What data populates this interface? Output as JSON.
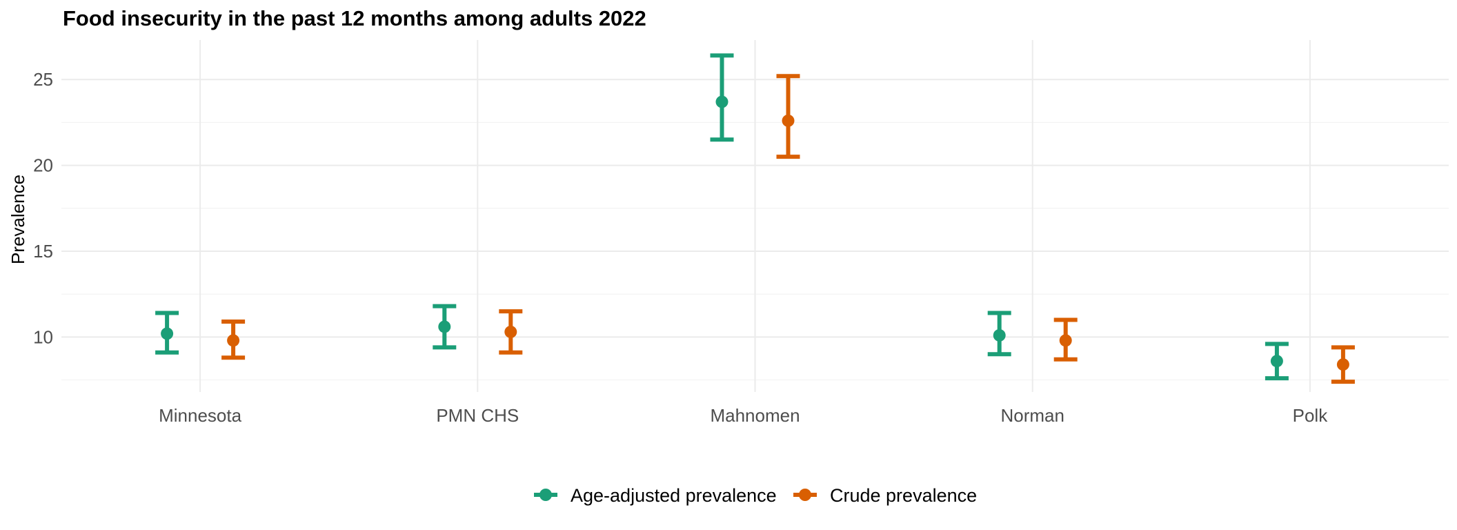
{
  "chart_data": {
    "type": "errorbar",
    "title": "Food insecurity in the past 12 months among adults 2022",
    "xlabel": "",
    "ylabel": "Prevalence",
    "categories": [
      "Minnesota",
      "PMN CHS",
      "Mahnomen",
      "Norman",
      "Polk"
    ],
    "ylim": [
      6.8,
      27.3
    ],
    "yticks": [
      10,
      15,
      20,
      25
    ],
    "grid": true,
    "legend_position": "bottom",
    "series": [
      {
        "name": "Age-adjusted prevalence",
        "color": "#1b9e77",
        "values": [
          10.2,
          10.6,
          23.7,
          10.1,
          8.6
        ],
        "lower": [
          9.1,
          9.4,
          21.5,
          9.0,
          7.6
        ],
        "upper": [
          11.4,
          11.8,
          26.4,
          11.4,
          9.6
        ]
      },
      {
        "name": "Crude prevalence",
        "color": "#d95f02",
        "values": [
          9.8,
          10.3,
          22.6,
          9.8,
          8.4
        ],
        "lower": [
          8.8,
          9.1,
          20.5,
          8.7,
          7.4
        ],
        "upper": [
          10.9,
          11.5,
          25.2,
          11.0,
          9.4
        ]
      }
    ]
  }
}
